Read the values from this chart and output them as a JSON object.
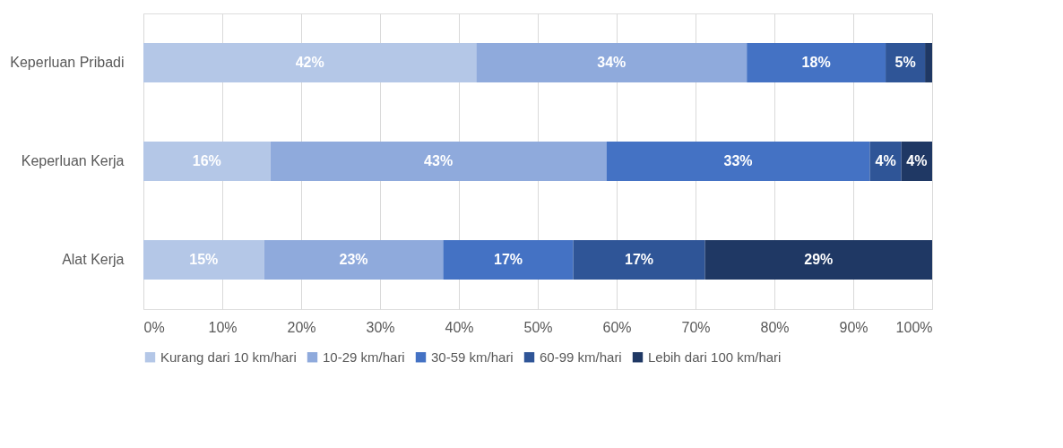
{
  "chart_data": {
    "type": "bar",
    "orientation": "horizontal",
    "stacked": true,
    "categories": [
      "Keperluan Pribadi",
      "Keperluan Kerja",
      "Alat Kerja"
    ],
    "series": [
      {
        "name": "Kurang dari 10 km/hari",
        "color": "#b4c7e7",
        "values": [
          42.2,
          16.1,
          15.3
        ],
        "value_labels": [
          "42%",
          "16%",
          "15%"
        ]
      },
      {
        "name": "10-29 km/hari",
        "color": "#8faadc",
        "values": [
          34.3,
          42.6,
          22.7
        ],
        "value_labels": [
          "34%",
          "43%",
          "23%"
        ]
      },
      {
        "name": "30-59 km/hari",
        "color": "#4472c4",
        "values": [
          17.6,
          33.4,
          16.5
        ],
        "value_labels": [
          "18%",
          "33%",
          "17%"
        ]
      },
      {
        "name": "60-99 km/hari",
        "color": "#2f5597",
        "values": [
          5.0,
          4.0,
          16.7
        ],
        "value_labels": [
          "5%",
          "4%",
          "17%"
        ]
      },
      {
        "name": "Lebih dari 100 km/hari",
        "color": "#1f3864",
        "values": [
          0.9,
          3.9,
          28.8
        ],
        "value_labels": [
          null,
          "4%",
          "29%"
        ]
      }
    ],
    "xlim": [
      0,
      100
    ],
    "xticks": [
      {
        "value": 0,
        "label": "0%"
      },
      {
        "value": 10,
        "label": "10%"
      },
      {
        "value": 20,
        "label": "20%"
      },
      {
        "value": 30,
        "label": "30%"
      },
      {
        "value": 40,
        "label": "40%"
      },
      {
        "value": 50,
        "label": "50%"
      },
      {
        "value": 60,
        "label": "60%"
      },
      {
        "value": 70,
        "label": "70%"
      },
      {
        "value": 80,
        "label": "80%"
      },
      {
        "value": 90,
        "label": "90%"
      },
      {
        "value": 100,
        "label": "100%"
      }
    ],
    "grid": "x",
    "legend": "bottom"
  }
}
